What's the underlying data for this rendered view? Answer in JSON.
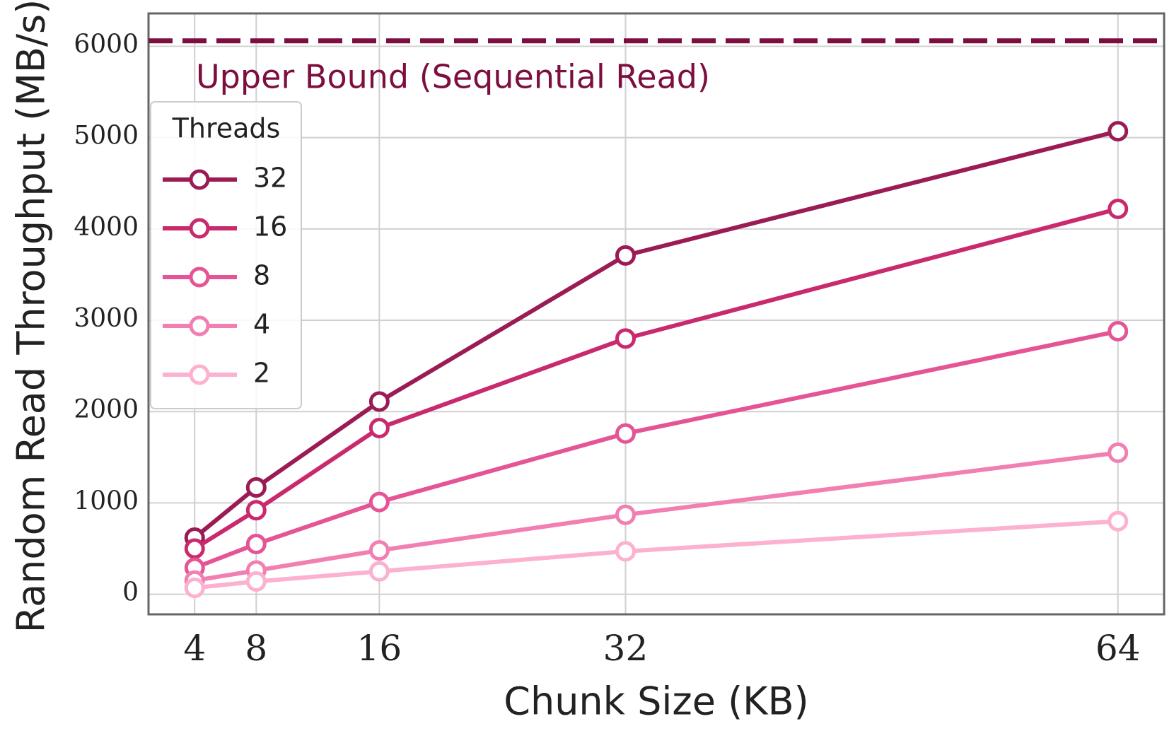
{
  "chart_data": {
    "type": "line",
    "x_label": "Chunk Size (KB)",
    "y_label": "Random Read Throughput (MB/s)",
    "x": [
      4,
      8,
      16,
      32,
      64
    ],
    "series": [
      {
        "name": "32",
        "color": "#9b1b55",
        "values": [
          620,
          1170,
          2110,
          3710,
          5070
        ]
      },
      {
        "name": "16",
        "color": "#c92a6e",
        "values": [
          500,
          920,
          1820,
          2800,
          4220
        ]
      },
      {
        "name": "8",
        "color": "#e55595",
        "values": [
          290,
          550,
          1010,
          1760,
          2880
        ]
      },
      {
        "name": "4",
        "color": "#f27fb2",
        "values": [
          150,
          260,
          480,
          870,
          1550
        ]
      },
      {
        "name": "2",
        "color": "#fbb1cf",
        "values": [
          70,
          140,
          250,
          470,
          800
        ]
      }
    ],
    "legend_title": "Threads",
    "legend": "upper left",
    "hline": {
      "value": 6060,
      "label": "Upper Bound (Sequential Read)",
      "color": "#7d0e40"
    },
    "xlim": [
      1,
      67
    ],
    "xticks": [
      4,
      8,
      16,
      32,
      64
    ],
    "ylim": [
      -220,
      6360
    ],
    "yticks": [
      0,
      1000,
      2000,
      3000,
      4000,
      5000,
      6000
    ],
    "grid": true
  }
}
